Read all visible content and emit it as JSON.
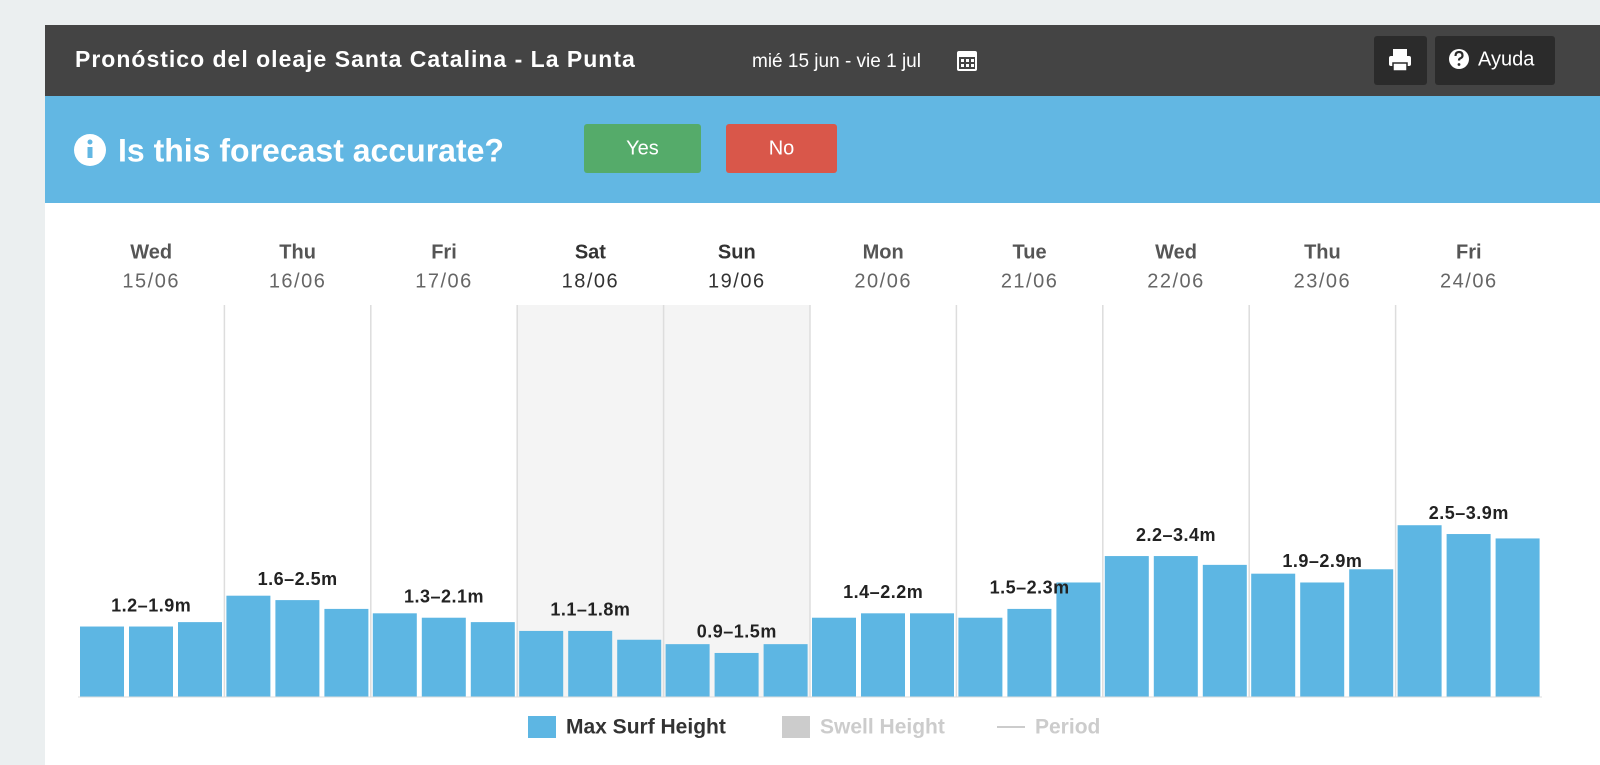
{
  "header": {
    "title": "Pronóstico del oleaje Santa Catalina - La Punta",
    "date_range": "mié 15 jun - vie 1 jul",
    "help": "Ayuda"
  },
  "banner": {
    "question": "Is this forecast accurate?",
    "yes": "Yes",
    "no": "No"
  },
  "chart_data": {
    "type": "bar",
    "days": [
      {
        "weekday": "Wed",
        "date": "15/06",
        "range": "1.2–1.9m"
      },
      {
        "weekday": "Thu",
        "date": "16/06",
        "range": "1.6–2.5m"
      },
      {
        "weekday": "Fri",
        "date": "17/06",
        "range": "1.3–2.1m"
      },
      {
        "weekday": "Sat",
        "date": "18/06",
        "range": "1.1–1.8m",
        "shaded": true
      },
      {
        "weekday": "Sun",
        "date": "19/06",
        "range": "0.9–1.5m",
        "shaded": true
      },
      {
        "weekday": "Mon",
        "date": "20/06",
        "range": "1.4–2.2m"
      },
      {
        "weekday": "Tue",
        "date": "21/06",
        "range": "1.5–2.3m"
      },
      {
        "weekday": "Wed",
        "date": "22/06",
        "range": "2.2–3.4m"
      },
      {
        "weekday": "Thu",
        "date": "23/06",
        "range": "1.9–2.9m"
      },
      {
        "weekday": "Fri",
        "date": "24/06",
        "range": "2.5–3.9m"
      }
    ],
    "series": [
      {
        "name": "Max Surf Height",
        "color": "#5db6e3",
        "values": [
          1.6,
          1.6,
          1.7,
          2.3,
          2.2,
          2.0,
          1.9,
          1.8,
          1.7,
          1.5,
          1.5,
          1.3,
          1.2,
          1.0,
          1.2,
          1.8,
          1.9,
          1.9,
          1.8,
          2.0,
          2.6,
          3.2,
          3.2,
          3.0,
          2.8,
          2.6,
          2.9,
          3.9,
          3.7,
          3.6
        ]
      }
    ],
    "inactive_legend": [
      {
        "name": "Swell Height",
        "color": "#cccccc"
      },
      {
        "name": "Period",
        "color": "#cccccc"
      }
    ],
    "ylim": [
      0,
      8.9
    ]
  }
}
